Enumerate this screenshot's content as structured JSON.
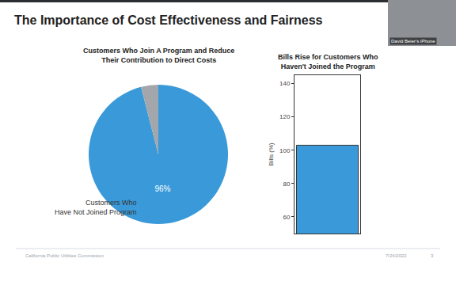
{
  "slide": {
    "title": "The Importance of Cost Effectiveness and Fairness",
    "footer": "California Public Utilities Commission",
    "date": "7/24/2022",
    "page": "3",
    "video_label": "David Beier's iPhone"
  },
  "chart_data": [
    {
      "type": "pie",
      "title": "Customers Who Join A Program and Reduce Their Contribution to Direct Costs",
      "categories": [
        "Customers Who Have Not Joined Program",
        null
      ],
      "values": [
        96,
        4
      ],
      "value_labels": [
        "96%",
        null
      ],
      "data_labels": true,
      "colors": [
        "#3a9ad9",
        "#a3a7ab"
      ]
    },
    {
      "type": "bar",
      "title": "Bills Rise for Customers Who Haven't Joined the Program",
      "y_label": "Bills (%)",
      "categories": [
        null
      ],
      "values": [
        103
      ],
      "color": "#3a9ad9",
      "ylim": [
        50,
        145
      ],
      "yticks": [
        60,
        80,
        100,
        120,
        140
      ],
      "tick_labels": "y",
      "grid": false
    }
  ]
}
